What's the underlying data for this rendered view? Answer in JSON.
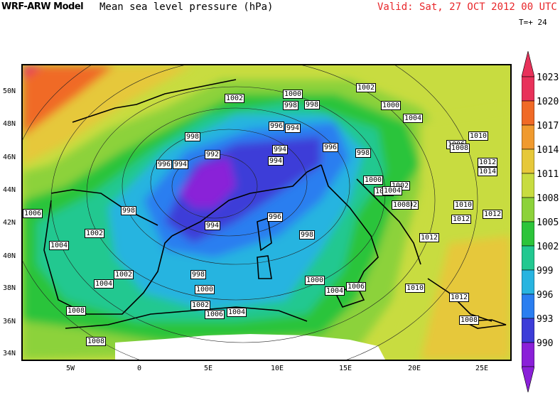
{
  "header": {
    "model": "WRF-ARW Model",
    "field": "Mean sea level pressure (hPa)",
    "valid": "Valid: Sat, 27 OCT 2012 00 UTC",
    "tstep": "T=+ 24"
  },
  "axes": {
    "lat_labels": [
      "50N",
      "48N",
      "46N",
      "44N",
      "42N",
      "40N",
      "38N",
      "36N",
      "34N"
    ],
    "lon_labels": [
      "5W",
      "0",
      "5E",
      "10E",
      "15E",
      "20E",
      "25E"
    ]
  },
  "colorbar": {
    "levels": [
      "1023",
      "1020",
      "1017",
      "1014",
      "1011",
      "1008",
      "1005",
      "1002",
      "999",
      "996",
      "993",
      "990"
    ],
    "colors": [
      "#e8325a",
      "#f06a26",
      "#f09a2e",
      "#e6c83a",
      "#c8dc40",
      "#8cd23a",
      "#2cc43a",
      "#22c890",
      "#28b4e0",
      "#2a7ef0",
      "#3c3cd8",
      "#8a20d8"
    ]
  },
  "map_labels": [
    "1002",
    "1000",
    "998",
    "1002",
    "1000",
    "1004",
    "998",
    "996",
    "994",
    "994",
    "996",
    "998",
    "996",
    "994",
    "992",
    "996",
    "994",
    "1000",
    "1004",
    "1002",
    "998",
    "1002",
    "1004",
    "996",
    "998",
    "1000",
    "1004",
    "994",
    "998",
    "1004",
    "1002",
    "1000",
    "1006",
    "1008",
    "1002",
    "1006",
    "1004",
    "1008",
    "1010",
    "1006",
    "1008",
    "1012",
    "1014",
    "1010",
    "1012",
    "1012",
    "1012",
    "1010",
    "1012",
    "1008",
    "1002",
    "1004",
    "1006",
    "1008",
    "998"
  ]
}
